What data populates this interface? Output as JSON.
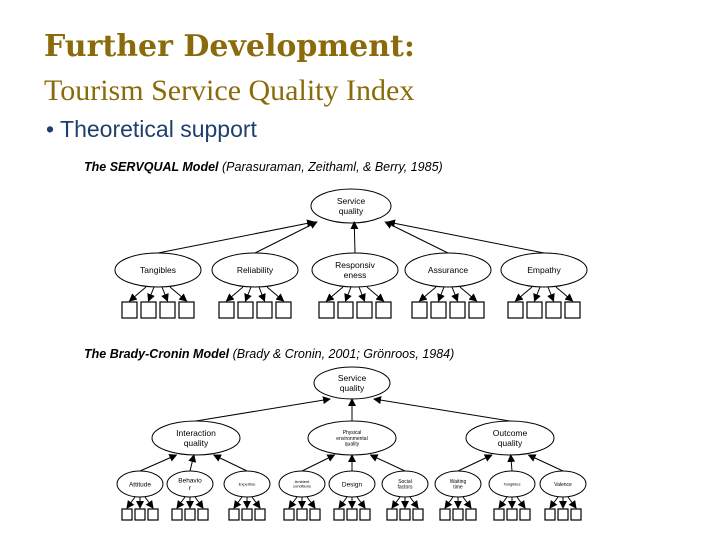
{
  "header": {
    "title_line1": "Further Development:",
    "title_line2": "Tourism Service Quality Index",
    "bullet": "Theoretical support"
  },
  "servqual": {
    "model_name": "The SERVQUAL Model",
    "citation": "(Parasuraman, Zeithaml, & Berry, 1985)",
    "root": [
      "Service",
      "quality"
    ],
    "dimensions": [
      [
        "Tangibles"
      ],
      [
        "Reliability"
      ],
      [
        "Responsiv",
        "eness"
      ],
      [
        "Assurance"
      ],
      [
        "Empathy"
      ]
    ]
  },
  "brady": {
    "model_name": "The Brady-Cronin Model",
    "citation": "(Brady & Cronin, 2001; Grönroos, 1984)",
    "root": [
      "Service",
      "quality"
    ],
    "primary": [
      [
        "Interaction",
        "quality"
      ],
      [
        "Physical",
        "environmental",
        "quality"
      ],
      [
        "Outcome",
        "quality"
      ]
    ],
    "sub": [
      [
        "Attitude"
      ],
      [
        "Behavio",
        "r"
      ],
      [
        "Expertise"
      ],
      [
        "Ambient",
        "conditions"
      ],
      [
        "Design"
      ],
      [
        "Social",
        "factors"
      ],
      [
        "Waiting",
        "time"
      ],
      [
        "Tangibles"
      ],
      [
        "Valence"
      ]
    ]
  }
}
